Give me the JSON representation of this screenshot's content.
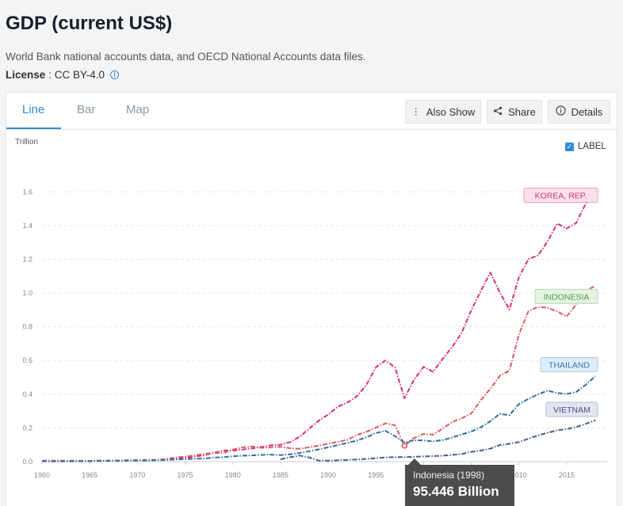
{
  "page": {
    "title": "GDP (current US$)",
    "subtitle": "World Bank national accounts data, and OECD National Accounts data files.",
    "license_label": "License",
    "license_value": " : CC BY-4.0"
  },
  "tabs": [
    {
      "label": "Line",
      "active": true
    },
    {
      "label": "Bar",
      "active": false
    },
    {
      "label": "Map",
      "active": false
    }
  ],
  "toolbar": {
    "also_show": "Also Show",
    "share": "Share",
    "details": "Details",
    "label_toggle": "LABEL"
  },
  "chart_data": {
    "type": "line",
    "ylabel": "Trillion",
    "ylim": [
      0,
      1.7
    ],
    "yticks": [
      0.0,
      0.2,
      0.4,
      0.6,
      0.8,
      1.0,
      1.2,
      1.4,
      1.6
    ],
    "ytick_labels": [
      "0.0",
      "0.2",
      "0.4",
      "0.6",
      "0.8",
      "1.0",
      "1.2",
      "1.4",
      "1.6"
    ],
    "xlim": [
      1960,
      2018
    ],
    "xticks": [
      1960,
      1965,
      1970,
      1975,
      1980,
      1985,
      1990,
      1995,
      2000,
      2005,
      2010,
      2015
    ],
    "grid": true,
    "x": [
      1960,
      1961,
      1962,
      1963,
      1964,
      1965,
      1966,
      1967,
      1968,
      1969,
      1970,
      1971,
      1972,
      1973,
      1974,
      1975,
      1976,
      1977,
      1978,
      1979,
      1980,
      1981,
      1982,
      1983,
      1984,
      1985,
      1986,
      1987,
      1988,
      1989,
      1990,
      1991,
      1992,
      1993,
      1994,
      1995,
      1996,
      1997,
      1998,
      1999,
      2000,
      2001,
      2002,
      2003,
      2004,
      2005,
      2006,
      2007,
      2008,
      2009,
      2010,
      2011,
      2012,
      2013,
      2014,
      2015,
      2016,
      2017,
      2018
    ],
    "series": [
      {
        "name": "KOREA, REP.",
        "color": "#d6317b",
        "values": [
          0.004,
          0.002,
          0.002,
          0.003,
          0.003,
          0.003,
          0.004,
          0.005,
          0.006,
          0.008,
          0.009,
          0.01,
          0.011,
          0.014,
          0.019,
          0.022,
          0.03,
          0.038,
          0.052,
          0.066,
          0.065,
          0.072,
          0.078,
          0.087,
          0.097,
          0.1,
          0.116,
          0.147,
          0.196,
          0.243,
          0.279,
          0.326,
          0.35,
          0.387,
          0.455,
          0.56,
          0.6,
          0.56,
          0.376,
          0.486,
          0.562,
          0.533,
          0.609,
          0.68,
          0.764,
          0.898,
          1.012,
          1.122,
          1.002,
          0.902,
          1.094,
          1.202,
          1.223,
          1.306,
          1.412,
          1.383,
          1.415,
          1.531,
          1.62
        ]
      },
      {
        "name": "INDONESIA",
        "color": "#e0595e",
        "values": [
          0.006,
          0.006,
          0.006,
          0.006,
          0.006,
          0.004,
          0.006,
          0.006,
          0.007,
          0.008,
          0.009,
          0.01,
          0.011,
          0.016,
          0.025,
          0.03,
          0.037,
          0.046,
          0.052,
          0.051,
          0.072,
          0.085,
          0.09,
          0.082,
          0.085,
          0.088,
          0.08,
          0.076,
          0.085,
          0.095,
          0.106,
          0.117,
          0.129,
          0.158,
          0.177,
          0.202,
          0.227,
          0.216,
          0.095,
          0.14,
          0.165,
          0.16,
          0.196,
          0.235,
          0.257,
          0.286,
          0.365,
          0.432,
          0.51,
          0.539,
          0.755,
          0.893,
          0.918,
          0.913,
          0.891,
          0.861,
          0.932,
          1.015,
          1.042
        ]
      },
      {
        "name": "THAILAND",
        "color": "#2f6f9f",
        "values": [
          0.003,
          0.003,
          0.003,
          0.003,
          0.003,
          0.004,
          0.005,
          0.005,
          0.006,
          0.006,
          0.007,
          0.007,
          0.008,
          0.01,
          0.013,
          0.015,
          0.017,
          0.019,
          0.024,
          0.027,
          0.032,
          0.035,
          0.037,
          0.04,
          0.042,
          0.039,
          0.043,
          0.051,
          0.062,
          0.073,
          0.085,
          0.098,
          0.111,
          0.125,
          0.144,
          0.169,
          0.183,
          0.151,
          0.113,
          0.127,
          0.126,
          0.12,
          0.128,
          0.143,
          0.161,
          0.179,
          0.204,
          0.24,
          0.283,
          0.276,
          0.341,
          0.373,
          0.399,
          0.421,
          0.407,
          0.401,
          0.413,
          0.456,
          0.506
        ]
      },
      {
        "name": "VIETNAM",
        "color": "#4a5a8a",
        "values": [
          null,
          null,
          null,
          null,
          null,
          null,
          null,
          null,
          null,
          null,
          null,
          null,
          null,
          null,
          null,
          null,
          null,
          null,
          null,
          null,
          null,
          null,
          null,
          null,
          null,
          0.014,
          0.026,
          0.036,
          0.025,
          0.006,
          0.006,
          0.008,
          0.01,
          0.013,
          0.016,
          0.021,
          0.025,
          0.027,
          0.027,
          0.029,
          0.031,
          0.033,
          0.035,
          0.04,
          0.045,
          0.058,
          0.066,
          0.077,
          0.099,
          0.106,
          0.116,
          0.136,
          0.156,
          0.171,
          0.186,
          0.193,
          0.205,
          0.224,
          0.245
        ]
      }
    ],
    "tooltip": {
      "series": "INDONESIA",
      "text": "Indonesia (1998)",
      "value": "95.446 Billion",
      "x": 1998,
      "y": 0.095
    }
  }
}
